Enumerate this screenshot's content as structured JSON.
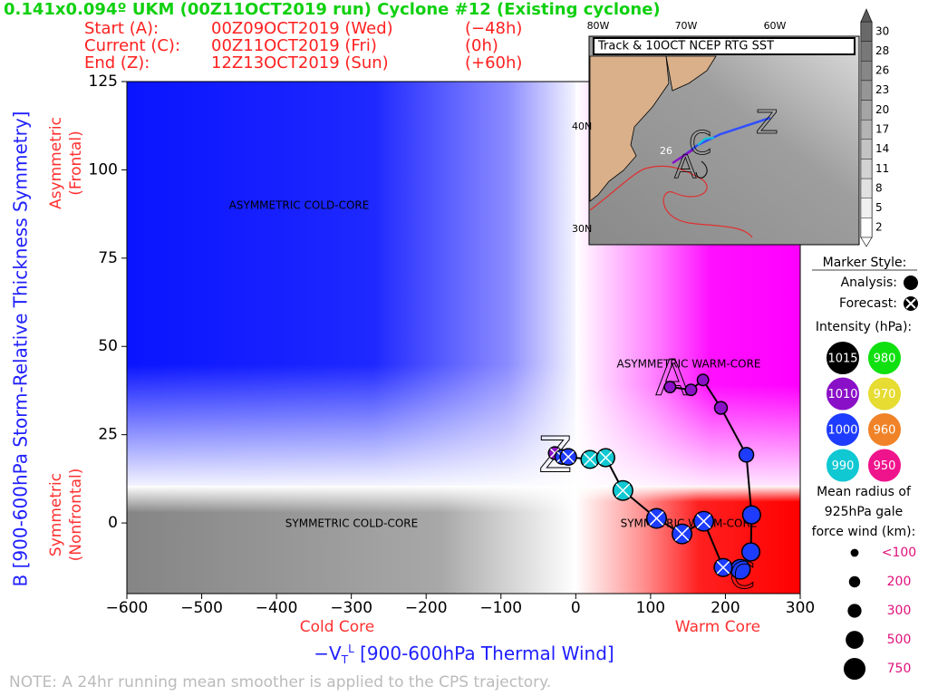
{
  "header": {
    "title": "0.141x0.094º UKM (00Z11OCT2019 run) Cyclone #12 (Existing cyclone)",
    "lines": [
      [
        "Start (A):",
        "00Z09OCT2019 (Wed)",
        "(−48h)"
      ],
      [
        "Current (C):",
        "00Z11OCT2019 (Fri)",
        "(0h)"
      ],
      [
        "End (Z):",
        "12Z13OCT2019 (Sun)",
        "(+60h)"
      ]
    ]
  },
  "chart_data": {
    "type": "scatter",
    "ylabel": "B [900-600hPa Storm-Relative Thickness Symmetry]",
    "xlabel": {
      "symbol": "−V",
      "sub": "T",
      "sup": "L",
      "text": " [900-600hPa Thermal Wind]"
    },
    "y_side_labels": [
      [
        "Asymmetric",
        "(Frontal)"
      ],
      [
        "Symmetric",
        "(Nonfrontal)"
      ]
    ],
    "x_side_labels": [
      "Cold Core",
      "Warm Core"
    ],
    "quadrant_labels": [
      "ASYMMETRIC COLD-CORE",
      "ASYMMETRIC WARM-CORE",
      "SYMMETRIC COLD-CORE",
      "SYMMETRIC WARM-CORE"
    ],
    "start_label": "A",
    "current_label": "C",
    "end_label": "Z",
    "xlim": [
      -600,
      300
    ],
    "xticks": [
      {
        "value": -600,
        "label": "−600"
      },
      {
        "value": -500,
        "label": "−500"
      },
      {
        "value": -400,
        "label": "−400"
      },
      {
        "value": -300,
        "label": "−300"
      },
      {
        "value": -200,
        "label": "−200"
      },
      {
        "value": -100,
        "label": "−100"
      },
      0,
      100,
      200,
      300
    ],
    "ylim": [
      -20,
      125
    ],
    "yticks": [
      0,
      25,
      50,
      75,
      100,
      125
    ],
    "series": [
      {
        "name": "Analysis:",
        "x": [
          126,
          154,
          170,
          194,
          228,
          235,
          234,
          220
        ],
        "values": [
          38.5,
          37.7,
          40.5,
          32.6,
          19.3,
          2.3,
          -8.2,
          -13.1
        ],
        "pressure": [
          1010,
          1010,
          1010,
          1010,
          1000,
          1000,
          1000,
          1000
        ],
        "radius": [
          200,
          200,
          200,
          250,
          330,
          500,
          500,
          600
        ]
      },
      {
        "name": "Forecast:",
        "x": [
          197,
          171,
          142,
          108,
          63,
          40,
          19,
          -10,
          -18,
          -28
        ],
        "values": [
          -12.6,
          0.5,
          -3.1,
          1.3,
          9.2,
          18.5,
          18,
          18.7,
          18.7,
          19.8
        ],
        "pressure": [
          1000,
          1000,
          1000,
          1000,
          990,
          990,
          990,
          1000,
          1000,
          1010
        ],
        "radius": [
          500,
          600,
          600,
          600,
          600,
          500,
          500,
          420,
          330,
          250
        ]
      }
    ],
    "legend": {
      "title": "Marker Style:"
    },
    "intensity_legend": {
      "title": "Intensity (hPa):",
      "levels": [
        {
          "value": 1015,
          "color": "#000000"
        },
        {
          "value": 1010,
          "color": "#8a10c8"
        },
        {
          "value": 1000,
          "color": "#1e3cff"
        },
        {
          "value": 990,
          "color": "#10c8d2"
        },
        {
          "value": 980,
          "color": "#10e010"
        },
        {
          "value": 970,
          "color": "#e6dc32"
        },
        {
          "value": 960,
          "color": "#f08228"
        },
        {
          "value": 950,
          "color": "#f0148c"
        }
      ]
    },
    "radius_legend": {
      "title": [
        "Mean radius of",
        "925hPa gale",
        "force wind (km):"
      ],
      "sizes": [
        {
          "value": 100,
          "label": "<100"
        },
        200,
        300,
        500,
        750
      ]
    },
    "note": "NOTE:  A 24hr running mean smoother is applied to the CPS trajectory."
  },
  "inset": {
    "title": "Track & 10OCT NCEP RTG SST",
    "lon_labels": [
      "80W",
      "70W",
      "60W"
    ],
    "lat_labels": [
      "40N",
      "30N"
    ],
    "contour_label": "26",
    "colorbar": {
      "ticks": [
        30,
        28,
        26,
        23,
        20,
        17,
        14,
        11,
        8,
        5,
        2
      ]
    }
  }
}
